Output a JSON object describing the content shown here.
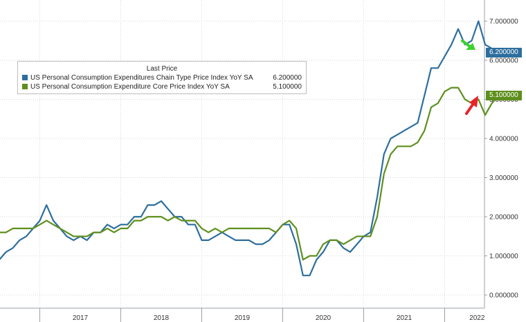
{
  "chart_data": {
    "type": "line",
    "title": "",
    "xlabel": "",
    "ylabel": "",
    "ylim": [
      -0.2,
      7.6
    ],
    "xlim": [
      2016.5,
      2022.9
    ],
    "yticks": [
      0,
      1,
      2,
      3,
      4,
      5,
      6,
      7
    ],
    "ytick_labels": [
      "0.000000",
      "1.000000",
      "2.000000",
      "3.000000",
      "4.000000",
      "5.000000",
      "6.000000",
      "7.000000"
    ],
    "year_labels": [
      "2017",
      "2018",
      "2019",
      "2020",
      "2021",
      "2022"
    ],
    "year_centers": [
      2017.5,
      2018.5,
      2019.5,
      2020.5,
      2021.5,
      2022.4
    ],
    "year_dividers": [
      2017,
      2018,
      2019,
      2020,
      2021,
      2022
    ],
    "grid": true,
    "legend": {
      "title": "Last Price",
      "placement": "top-left",
      "entries": [
        {
          "label": "US Personal Consumption Expenditures Chain Type Price Index YoY SA",
          "value": "6.200000"
        },
        {
          "label": "US Personal Consumption Expenditure Core Price Index YoY SA",
          "value": "5.100000"
        }
      ]
    },
    "last_value_tags": [
      "6.200000",
      "5.100000"
    ],
    "series": [
      {
        "color": "#2d6e9e",
        "last": 6.2,
        "x": [
          2016.5,
          2016.583,
          2016.667,
          2016.75,
          2016.833,
          2016.917,
          2017,
          2017.083,
          2017.167,
          2017.25,
          2017.333,
          2017.417,
          2017.5,
          2017.583,
          2017.667,
          2017.75,
          2017.833,
          2017.917,
          2018,
          2018.083,
          2018.167,
          2018.25,
          2018.333,
          2018.417,
          2018.5,
          2018.583,
          2018.667,
          2018.75,
          2018.833,
          2018.917,
          2019,
          2019.083,
          2019.167,
          2019.25,
          2019.333,
          2019.417,
          2019.5,
          2019.583,
          2019.667,
          2019.75,
          2019.833,
          2019.917,
          2020,
          2020.083,
          2020.167,
          2020.25,
          2020.333,
          2020.417,
          2020.5,
          2020.583,
          2020.667,
          2020.75,
          2020.833,
          2020.917,
          2021,
          2021.083,
          2021.167,
          2021.25,
          2021.333,
          2021.417,
          2021.5,
          2021.583,
          2021.667,
          2021.75,
          2021.833,
          2021.917,
          2022,
          2022.083,
          2022.167,
          2022.25,
          2022.333,
          2022.417,
          2022.5,
          2022.583,
          2022.667
        ],
        "values": [
          0.9,
          1.1,
          1.2,
          1.4,
          1.5,
          1.7,
          1.9,
          2.3,
          1.9,
          1.7,
          1.5,
          1.4,
          1.5,
          1.4,
          1.6,
          1.6,
          1.8,
          1.7,
          1.8,
          1.8,
          2.0,
          2.0,
          2.3,
          2.3,
          2.4,
          2.2,
          2.0,
          2.0,
          1.8,
          1.8,
          1.4,
          1.4,
          1.5,
          1.6,
          1.5,
          1.4,
          1.4,
          1.4,
          1.3,
          1.3,
          1.4,
          1.6,
          1.8,
          1.8,
          1.3,
          0.5,
          0.5,
          0.9,
          1.1,
          1.4,
          1.4,
          1.2,
          1.1,
          1.3,
          1.5,
          1.6,
          2.5,
          3.6,
          4.0,
          4.1,
          4.2,
          4.3,
          4.4,
          5.1,
          5.8,
          5.8,
          6.1,
          6.4,
          6.8,
          6.4,
          6.5,
          7.0,
          6.4,
          6.3,
          6.2
        ]
      },
      {
        "color": "#5e8f1d",
        "last": 5.1,
        "x": [
          2016.5,
          2016.583,
          2016.667,
          2016.75,
          2016.833,
          2016.917,
          2017,
          2017.083,
          2017.167,
          2017.25,
          2017.333,
          2017.417,
          2017.5,
          2017.583,
          2017.667,
          2017.75,
          2017.833,
          2017.917,
          2018,
          2018.083,
          2018.167,
          2018.25,
          2018.333,
          2018.417,
          2018.5,
          2018.583,
          2018.667,
          2018.75,
          2018.833,
          2018.917,
          2019,
          2019.083,
          2019.167,
          2019.25,
          2019.333,
          2019.417,
          2019.5,
          2019.583,
          2019.667,
          2019.75,
          2019.833,
          2019.917,
          2020,
          2020.083,
          2020.167,
          2020.25,
          2020.333,
          2020.417,
          2020.5,
          2020.583,
          2020.667,
          2020.75,
          2020.833,
          2020.917,
          2021,
          2021.083,
          2021.167,
          2021.25,
          2021.333,
          2021.417,
          2021.5,
          2021.583,
          2021.667,
          2021.75,
          2021.833,
          2021.917,
          2022,
          2022.083,
          2022.167,
          2022.25,
          2022.333,
          2022.417,
          2022.5,
          2022.583,
          2022.667
        ],
        "values": [
          1.6,
          1.6,
          1.7,
          1.7,
          1.7,
          1.7,
          1.8,
          1.9,
          1.8,
          1.7,
          1.6,
          1.5,
          1.5,
          1.5,
          1.6,
          1.6,
          1.7,
          1.6,
          1.7,
          1.7,
          1.9,
          1.9,
          2.0,
          2.0,
          2.0,
          1.9,
          2.0,
          1.9,
          1.9,
          1.9,
          1.7,
          1.6,
          1.7,
          1.6,
          1.7,
          1.7,
          1.7,
          1.7,
          1.7,
          1.7,
          1.7,
          1.6,
          1.8,
          1.9,
          1.7,
          0.9,
          1.0,
          1.0,
          1.3,
          1.4,
          1.4,
          1.3,
          1.4,
          1.5,
          1.5,
          1.5,
          2.0,
          3.1,
          3.6,
          3.8,
          3.8,
          3.8,
          3.9,
          4.2,
          4.8,
          4.9,
          5.2,
          5.3,
          5.3,
          5.0,
          4.9,
          5.0,
          4.6,
          4.9,
          5.1
        ]
      }
    ]
  }
}
